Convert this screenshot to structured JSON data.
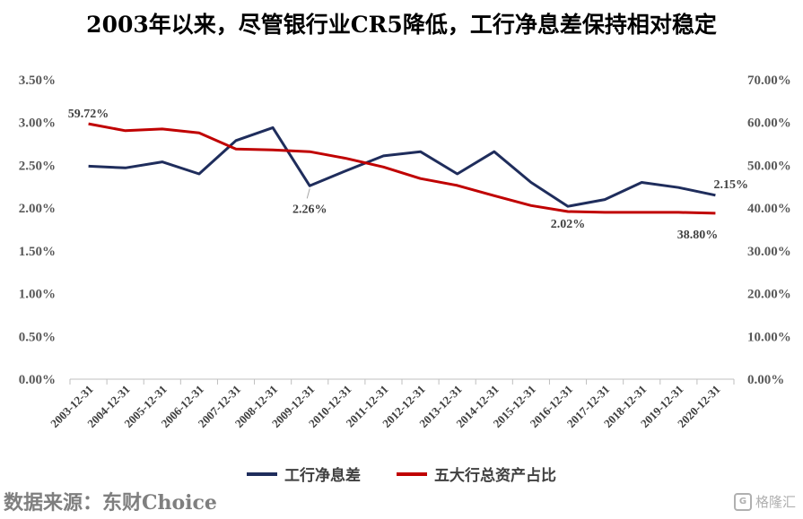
{
  "chart_data": {
    "type": "line",
    "title": "2003年以来，尽管银行业CR5降低，工行净息差保持相对稳定",
    "categories": [
      "2003-12-31",
      "2004-12-31",
      "2005-12-31",
      "2006-12-31",
      "2007-12-31",
      "2008-12-31",
      "2009-12-31",
      "2010-12-31",
      "2011-12-31",
      "2012-12-31",
      "2013-12-31",
      "2014-12-31",
      "2015-12-31",
      "2016-12-31",
      "2017-12-31",
      "2018-12-31",
      "2019-12-31",
      "2020-12-31"
    ],
    "left_axis": {
      "ticks": [
        "0.00%",
        "0.50%",
        "1.00%",
        "1.50%",
        "2.00%",
        "2.50%",
        "3.00%",
        "3.50%"
      ],
      "ylim": [
        0,
        3.5
      ]
    },
    "right_axis": {
      "ticks": [
        "0.00%",
        "10.00%",
        "20.00%",
        "30.00%",
        "40.00%",
        "50.00%",
        "60.00%",
        "70.00%"
      ],
      "ylim": [
        0,
        70
      ]
    },
    "series": [
      {
        "name": "工行净息差",
        "axis": "left",
        "color": "#1f2d5c",
        "values": [
          2.49,
          2.47,
          2.54,
          2.4,
          2.79,
          2.94,
          2.26,
          2.44,
          2.61,
          2.66,
          2.4,
          2.66,
          2.3,
          2.02,
          2.1,
          2.3,
          2.24,
          2.15
        ]
      },
      {
        "name": "五大行总资产占比",
        "axis": "right",
        "color": "#c00000",
        "values": [
          59.72,
          58.1,
          58.5,
          57.6,
          53.8,
          53.6,
          53.2,
          51.6,
          49.6,
          46.9,
          45.3,
          42.9,
          40.6,
          39.2,
          39.0,
          39.0,
          39.0,
          38.8
        ]
      }
    ],
    "data_labels": [
      {
        "series": 0,
        "index": 6,
        "text": "2.26%"
      },
      {
        "series": 0,
        "index": 13,
        "text": "2.02%"
      },
      {
        "series": 0,
        "index": 17,
        "text": "2.15%"
      },
      {
        "series": 1,
        "index": 0,
        "text": "59.72%"
      },
      {
        "series": 1,
        "index": 17,
        "text": "38.80%"
      }
    ],
    "legend_position": "bottom",
    "grid": false
  },
  "footer": {
    "source": "数据来源：东财Choice",
    "watermark": "格隆汇",
    "watermark_logo": "G"
  }
}
